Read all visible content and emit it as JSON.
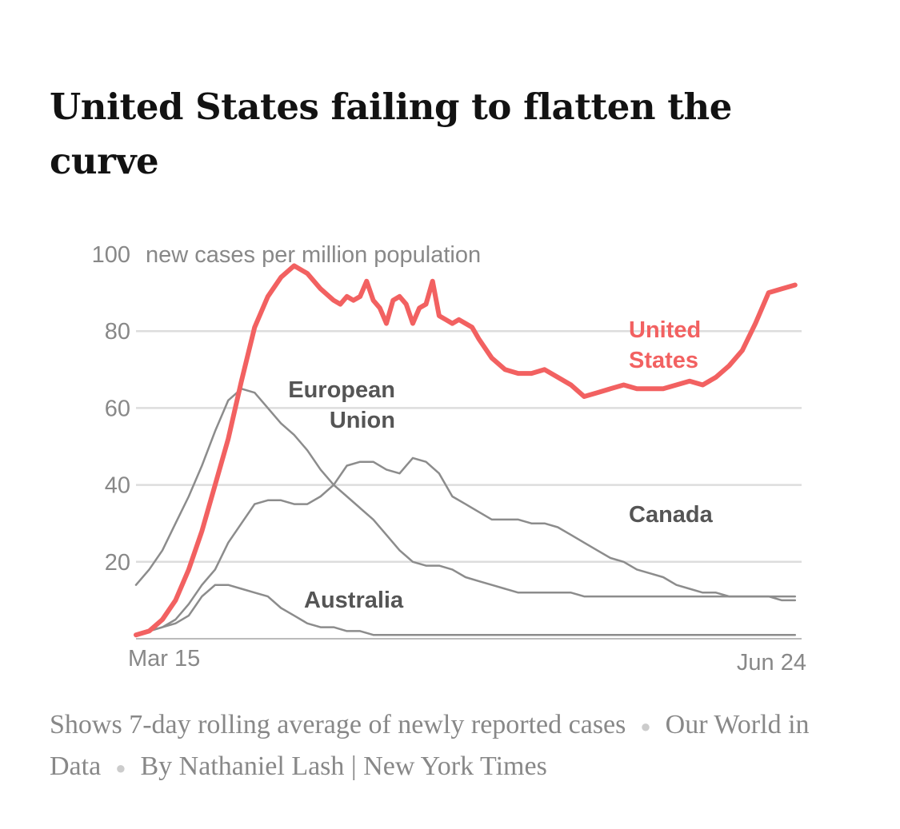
{
  "title": "United States failing to flatten the curve",
  "footer": {
    "note": "Shows 7-day rolling average of newly reported cases",
    "source": "Our World in Data",
    "byline": "By Nathaniel Lash | New York Times"
  },
  "colors": {
    "us": "#f26161",
    "others": "#8c8c8c",
    "grid": "#dddddd",
    "axis_text": "#888888",
    "label_text": "#555555"
  },
  "chart_data": {
    "type": "line",
    "title": "United States failing to flatten the curve",
    "ylabel": "new cases per million population",
    "ylim": [
      0,
      100
    ],
    "yticks": [
      20,
      40,
      60,
      80,
      100
    ],
    "x_start": "Mar 15",
    "x_end": "Jun 24",
    "x_tick_labels": [
      "Mar 15",
      "Jun 24"
    ],
    "x_range_days": [
      0,
      101
    ],
    "grid": true,
    "legend": "direct-labels",
    "series": [
      {
        "name": "United States",
        "label_lines": [
          "United",
          "States"
        ],
        "x": [
          0,
          2,
          4,
          6,
          8,
          10,
          12,
          14,
          16,
          18,
          20,
          22,
          24,
          26,
          28,
          30,
          31,
          32,
          33,
          34,
          35,
          36,
          37,
          38,
          39,
          40,
          41,
          42,
          43,
          44,
          45,
          46,
          47,
          48,
          49,
          50,
          51,
          52,
          54,
          56,
          58,
          60,
          62,
          64,
          66,
          68,
          70,
          72,
          74,
          76,
          78,
          80,
          82,
          84,
          86,
          88,
          90,
          92,
          94,
          96,
          98,
          100
        ],
        "y": [
          1,
          2,
          5,
          10,
          18,
          28,
          40,
          52,
          67,
          81,
          89,
          94,
          97,
          95,
          91,
          88,
          87,
          89,
          88,
          89,
          93,
          88,
          86,
          82,
          88,
          89,
          87,
          82,
          86,
          87,
          93,
          84,
          83,
          82,
          83,
          82,
          81,
          78,
          73,
          70,
          69,
          69,
          70,
          68,
          66,
          63,
          64,
          65,
          66,
          65,
          65,
          65,
          66,
          67,
          66,
          68,
          71,
          75,
          82,
          90,
          91,
          92
        ]
      },
      {
        "name": "European Union",
        "label_lines": [
          "European",
          "Union"
        ],
        "x": [
          0,
          2,
          4,
          6,
          8,
          10,
          12,
          14,
          16,
          18,
          20,
          22,
          24,
          26,
          28,
          30,
          32,
          34,
          36,
          38,
          40,
          42,
          44,
          46,
          48,
          50,
          52,
          54,
          56,
          58,
          60,
          62,
          64,
          66,
          68,
          70,
          72,
          74,
          76,
          78,
          80,
          82,
          84,
          86,
          88,
          90,
          92,
          94,
          96,
          98,
          100
        ],
        "y": [
          14,
          18,
          23,
          30,
          37,
          45,
          54,
          62,
          65,
          64,
          60,
          56,
          53,
          49,
          44,
          40,
          37,
          34,
          31,
          27,
          23,
          20,
          19,
          19,
          18,
          16,
          15,
          14,
          13,
          12,
          12,
          12,
          12,
          12,
          11,
          11,
          11,
          11,
          11,
          11,
          11,
          11,
          11,
          11,
          11,
          11,
          11,
          11,
          11,
          11,
          11
        ]
      },
      {
        "name": "Canada",
        "label_lines": [
          "Canada"
        ],
        "x": [
          0,
          2,
          4,
          6,
          8,
          10,
          12,
          14,
          16,
          18,
          20,
          22,
          24,
          26,
          28,
          30,
          32,
          34,
          36,
          38,
          40,
          42,
          44,
          46,
          48,
          50,
          52,
          54,
          56,
          58,
          60,
          62,
          64,
          66,
          68,
          70,
          72,
          74,
          76,
          78,
          80,
          82,
          84,
          86,
          88,
          90,
          92,
          94,
          96,
          98,
          100
        ],
        "y": [
          1,
          2,
          3,
          5,
          9,
          14,
          18,
          25,
          30,
          35,
          36,
          36,
          35,
          35,
          37,
          40,
          45,
          46,
          46,
          44,
          43,
          47,
          46,
          43,
          37,
          35,
          33,
          31,
          31,
          31,
          30,
          30,
          29,
          27,
          25,
          23,
          21,
          20,
          18,
          17,
          16,
          14,
          13,
          12,
          12,
          11,
          11,
          11,
          11,
          10,
          10
        ]
      },
      {
        "name": "Australia",
        "label_lines": [
          "Australia"
        ],
        "x": [
          0,
          2,
          4,
          6,
          8,
          10,
          12,
          14,
          16,
          18,
          20,
          22,
          24,
          26,
          28,
          30,
          32,
          34,
          36,
          38,
          40,
          42,
          44,
          46,
          48,
          50,
          52,
          54,
          56,
          58,
          60,
          62,
          64,
          66,
          68,
          70,
          72,
          74,
          76,
          78,
          80,
          82,
          84,
          86,
          88,
          90,
          92,
          94,
          96,
          98,
          100
        ],
        "y": [
          1,
          2,
          3,
          4,
          6,
          11,
          14,
          14,
          13,
          12,
          11,
          8,
          6,
          4,
          3,
          3,
          2,
          2,
          1,
          1,
          1,
          1,
          1,
          1,
          1,
          1,
          1,
          1,
          1,
          1,
          1,
          1,
          1,
          1,
          1,
          1,
          1,
          1,
          1,
          1,
          1,
          1,
          1,
          1,
          1,
          1,
          1,
          1,
          1,
          1,
          1
        ]
      }
    ]
  }
}
